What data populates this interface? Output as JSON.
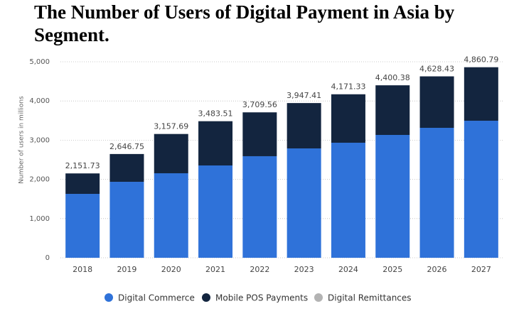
{
  "chart_data": {
    "type": "stacked-bar",
    "title": "The Number of Users of Digital Payment in Asia by Segment.",
    "y_label": "Number of users in millions",
    "categories": [
      "2018",
      "2019",
      "2020",
      "2021",
      "2022",
      "2023",
      "2024",
      "2025",
      "2026",
      "2027"
    ],
    "series": [
      {
        "name": "Digital Commerce",
        "color": "#2f72d9",
        "values": [
          1630,
          1938,
          2156,
          2355,
          2591,
          2790,
          2935,
          3134,
          3315,
          3496
        ]
      },
      {
        "name": "Mobile POS Payments",
        "color": "#13253f",
        "values": [
          522,
          709,
          1002,
          1129,
          1119,
          1157,
          1236,
          1266,
          1313,
          1365
        ]
      },
      {
        "name": "Digital Remittances",
        "color": "#b3b3b3",
        "values": [
          0,
          0,
          0,
          0,
          0,
          0,
          0,
          0,
          0,
          0
        ]
      }
    ],
    "totals": {
      "values": [
        2151.73,
        2646.75,
        3157.69,
        3483.51,
        3709.56,
        3947.41,
        4171.33,
        4400.38,
        4628.43,
        4860.79
      ],
      "value_labels": [
        "2,151.73",
        "2,646.75",
        "3,157.69",
        "3,483.51",
        "3,709.56",
        "3,947.41",
        "4,171.33",
        "4,400.38",
        "4,628.43",
        "4,860.79"
      ]
    },
    "ylim": [
      0,
      5000
    ],
    "yticks": [
      0,
      {
        "value": 1000,
        "label": "1,000"
      },
      {
        "value": 2000,
        "label": "2,000"
      },
      {
        "value": 3000,
        "label": "3,000"
      },
      {
        "value": 4000,
        "label": "4,000"
      },
      {
        "value": 5000,
        "label": "5,000"
      }
    ],
    "grid": true,
    "legend": "bottom"
  }
}
